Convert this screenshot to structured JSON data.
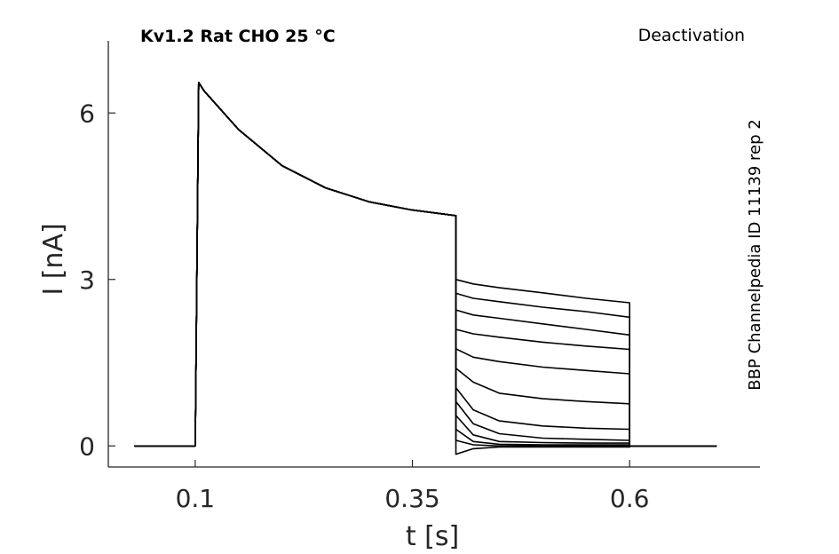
{
  "chart_data": {
    "type": "line",
    "title": "Kv1.2  Rat  CHO  25 °C",
    "protocol_label": "Deactivation",
    "side_label": "BBP Channelpedia ID 11139 rep 2",
    "xlabel": "t [s]",
    "ylabel": "I [nA]",
    "xlim": [
      0.0,
      0.75
    ],
    "ylim": [
      -0.38,
      7.3
    ],
    "xticks": [
      0.1,
      0.35,
      0.6
    ],
    "xtick_labels": [
      "0.1",
      "0.35",
      "0.6"
    ],
    "yticks": [
      0,
      3,
      6
    ],
    "ytick_labels": [
      "0",
      "3",
      "6"
    ],
    "grid": false,
    "line_color": "#000000",
    "x": [
      0.03,
      0.1,
      0.104,
      0.11,
      0.15,
      0.2,
      0.25,
      0.3,
      0.35,
      0.4,
      0.4,
      0.42,
      0.45,
      0.5,
      0.55,
      0.6,
      0.6,
      0.7
    ],
    "series": [
      {
        "values": [
          0,
          0,
          6.55,
          6.4,
          5.7,
          5.05,
          4.65,
          4.4,
          4.25,
          4.15,
          3.0,
          2.92,
          2.85,
          2.76,
          2.66,
          2.58,
          0,
          0
        ]
      },
      {
        "values": [
          0,
          0,
          6.55,
          6.4,
          5.7,
          5.05,
          4.65,
          4.4,
          4.25,
          4.15,
          2.75,
          2.66,
          2.6,
          2.5,
          2.42,
          2.32,
          0,
          0
        ]
      },
      {
        "values": [
          0,
          0,
          6.55,
          6.4,
          5.7,
          5.05,
          4.65,
          4.4,
          4.25,
          4.15,
          2.45,
          2.36,
          2.3,
          2.2,
          2.1,
          2.0,
          0,
          0
        ]
      },
      {
        "values": [
          0,
          0,
          6.55,
          6.4,
          5.7,
          5.05,
          4.65,
          4.4,
          4.25,
          4.15,
          2.1,
          2.02,
          1.96,
          1.87,
          1.8,
          1.74,
          0,
          0
        ]
      },
      {
        "values": [
          0,
          0,
          6.55,
          6.4,
          5.7,
          5.05,
          4.65,
          4.4,
          4.25,
          4.15,
          1.75,
          1.6,
          1.52,
          1.42,
          1.36,
          1.3,
          0,
          0
        ]
      },
      {
        "values": [
          0,
          0,
          6.55,
          6.4,
          5.7,
          5.05,
          4.65,
          4.4,
          4.25,
          4.15,
          1.4,
          1.15,
          0.95,
          0.85,
          0.8,
          0.76,
          0,
          0
        ]
      },
      {
        "values": [
          0,
          0,
          6.55,
          6.4,
          5.7,
          5.05,
          4.65,
          4.4,
          4.25,
          4.15,
          1.05,
          0.65,
          0.45,
          0.36,
          0.32,
          0.3,
          0,
          0
        ]
      },
      {
        "values": [
          0,
          0,
          6.55,
          6.4,
          5.7,
          5.05,
          4.65,
          4.4,
          4.25,
          4.15,
          0.8,
          0.4,
          0.22,
          0.14,
          0.12,
          0.1,
          0,
          0
        ]
      },
      {
        "values": [
          0,
          0,
          6.55,
          6.4,
          5.7,
          5.05,
          4.65,
          4.4,
          4.25,
          4.15,
          0.55,
          0.2,
          0.08,
          0.06,
          0.05,
          0.05,
          0,
          0
        ]
      },
      {
        "values": [
          0,
          0,
          6.55,
          6.4,
          5.7,
          5.05,
          4.65,
          4.4,
          4.25,
          4.15,
          0.3,
          0.08,
          0.03,
          0.02,
          0.02,
          0.02,
          0,
          0
        ]
      },
      {
        "values": [
          0,
          0,
          6.55,
          6.4,
          5.7,
          5.05,
          4.65,
          4.4,
          4.25,
          4.15,
          0.1,
          0.02,
          0.0,
          0.0,
          0.0,
          0.0,
          0,
          0
        ]
      },
      {
        "values": [
          0,
          0,
          6.55,
          6.4,
          5.7,
          5.05,
          4.65,
          4.4,
          4.25,
          4.15,
          -0.15,
          -0.05,
          -0.02,
          -0.02,
          -0.02,
          -0.02,
          0,
          0
        ]
      }
    ]
  }
}
